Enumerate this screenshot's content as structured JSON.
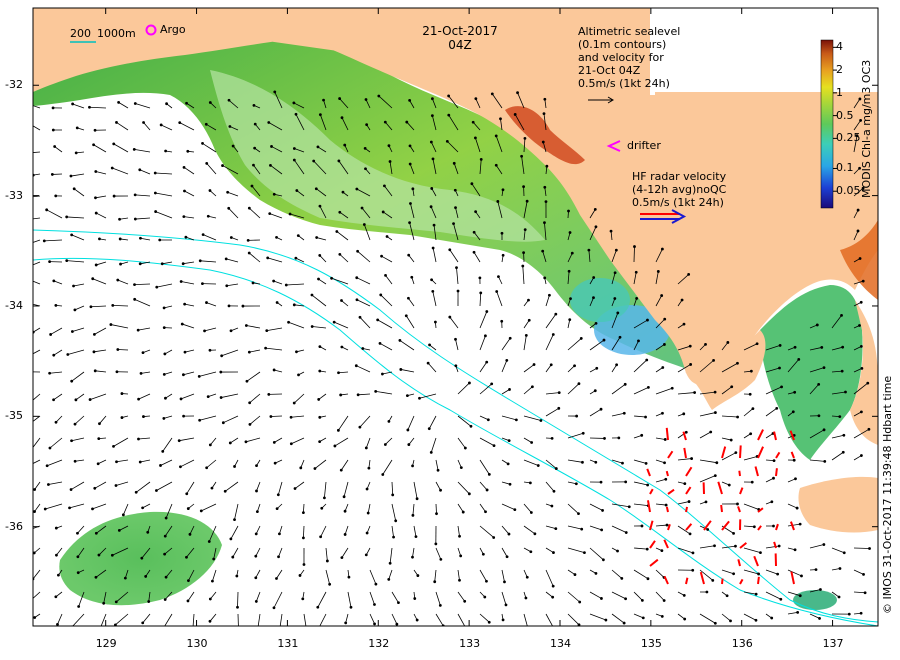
{
  "title": {
    "date": "21-Oct-2017",
    "time": "04Z"
  },
  "scale_legend": {
    "label_a": "200",
    "label_b": "1000m",
    "color": "#00c0c0"
  },
  "argo_legend": {
    "label": "Argo",
    "color": "#ff00ff"
  },
  "altimetry_legend": {
    "lines": [
      "Altimetric sealevel",
      "(0.1m contours)",
      "and velocity for",
      "21-Oct 04Z",
      "0.5m/s (1kt 24h)"
    ]
  },
  "drifter_legend": {
    "label": "drifter",
    "color": "#ff00ff"
  },
  "hf_radar_legend": {
    "lines": [
      "HF radar velocity",
      "(4-12h avg)noQC",
      "0.5m/s (1kt 24h)"
    ]
  },
  "colorbar": {
    "title": "MODIS Chl-a mg/m3 OC3",
    "ticks": [
      "4",
      "2",
      "1",
      "0.5",
      "0.25",
      "0.1",
      "0.05"
    ],
    "tick_values": [
      4,
      2,
      1,
      0.5,
      0.25,
      0.1,
      0.05
    ],
    "range": [
      0.03,
      5
    ]
  },
  "credit": "© IMOS 31-Oct-2017 11:39:48 Hdbart time",
  "axes": {
    "lon_ticks": [
      "129",
      "130",
      "131",
      "132",
      "133",
      "134",
      "135",
      "136",
      "137"
    ],
    "lon_values": [
      129,
      130,
      131,
      132,
      133,
      134,
      135,
      136,
      137
    ],
    "lat_ticks": [
      "-32",
      "-33",
      "-34",
      "-35",
      "-36"
    ],
    "lat_values": [
      -32,
      -33,
      -34,
      -35,
      -36
    ],
    "lon_range": [
      128.2,
      137.5
    ],
    "lat_range": [
      -36.9,
      -31.3
    ]
  },
  "colors": {
    "land": "#fbc89a",
    "isobath": "#00e0e0",
    "radar_arrow": "#ff0000",
    "arrow": "#000000"
  }
}
